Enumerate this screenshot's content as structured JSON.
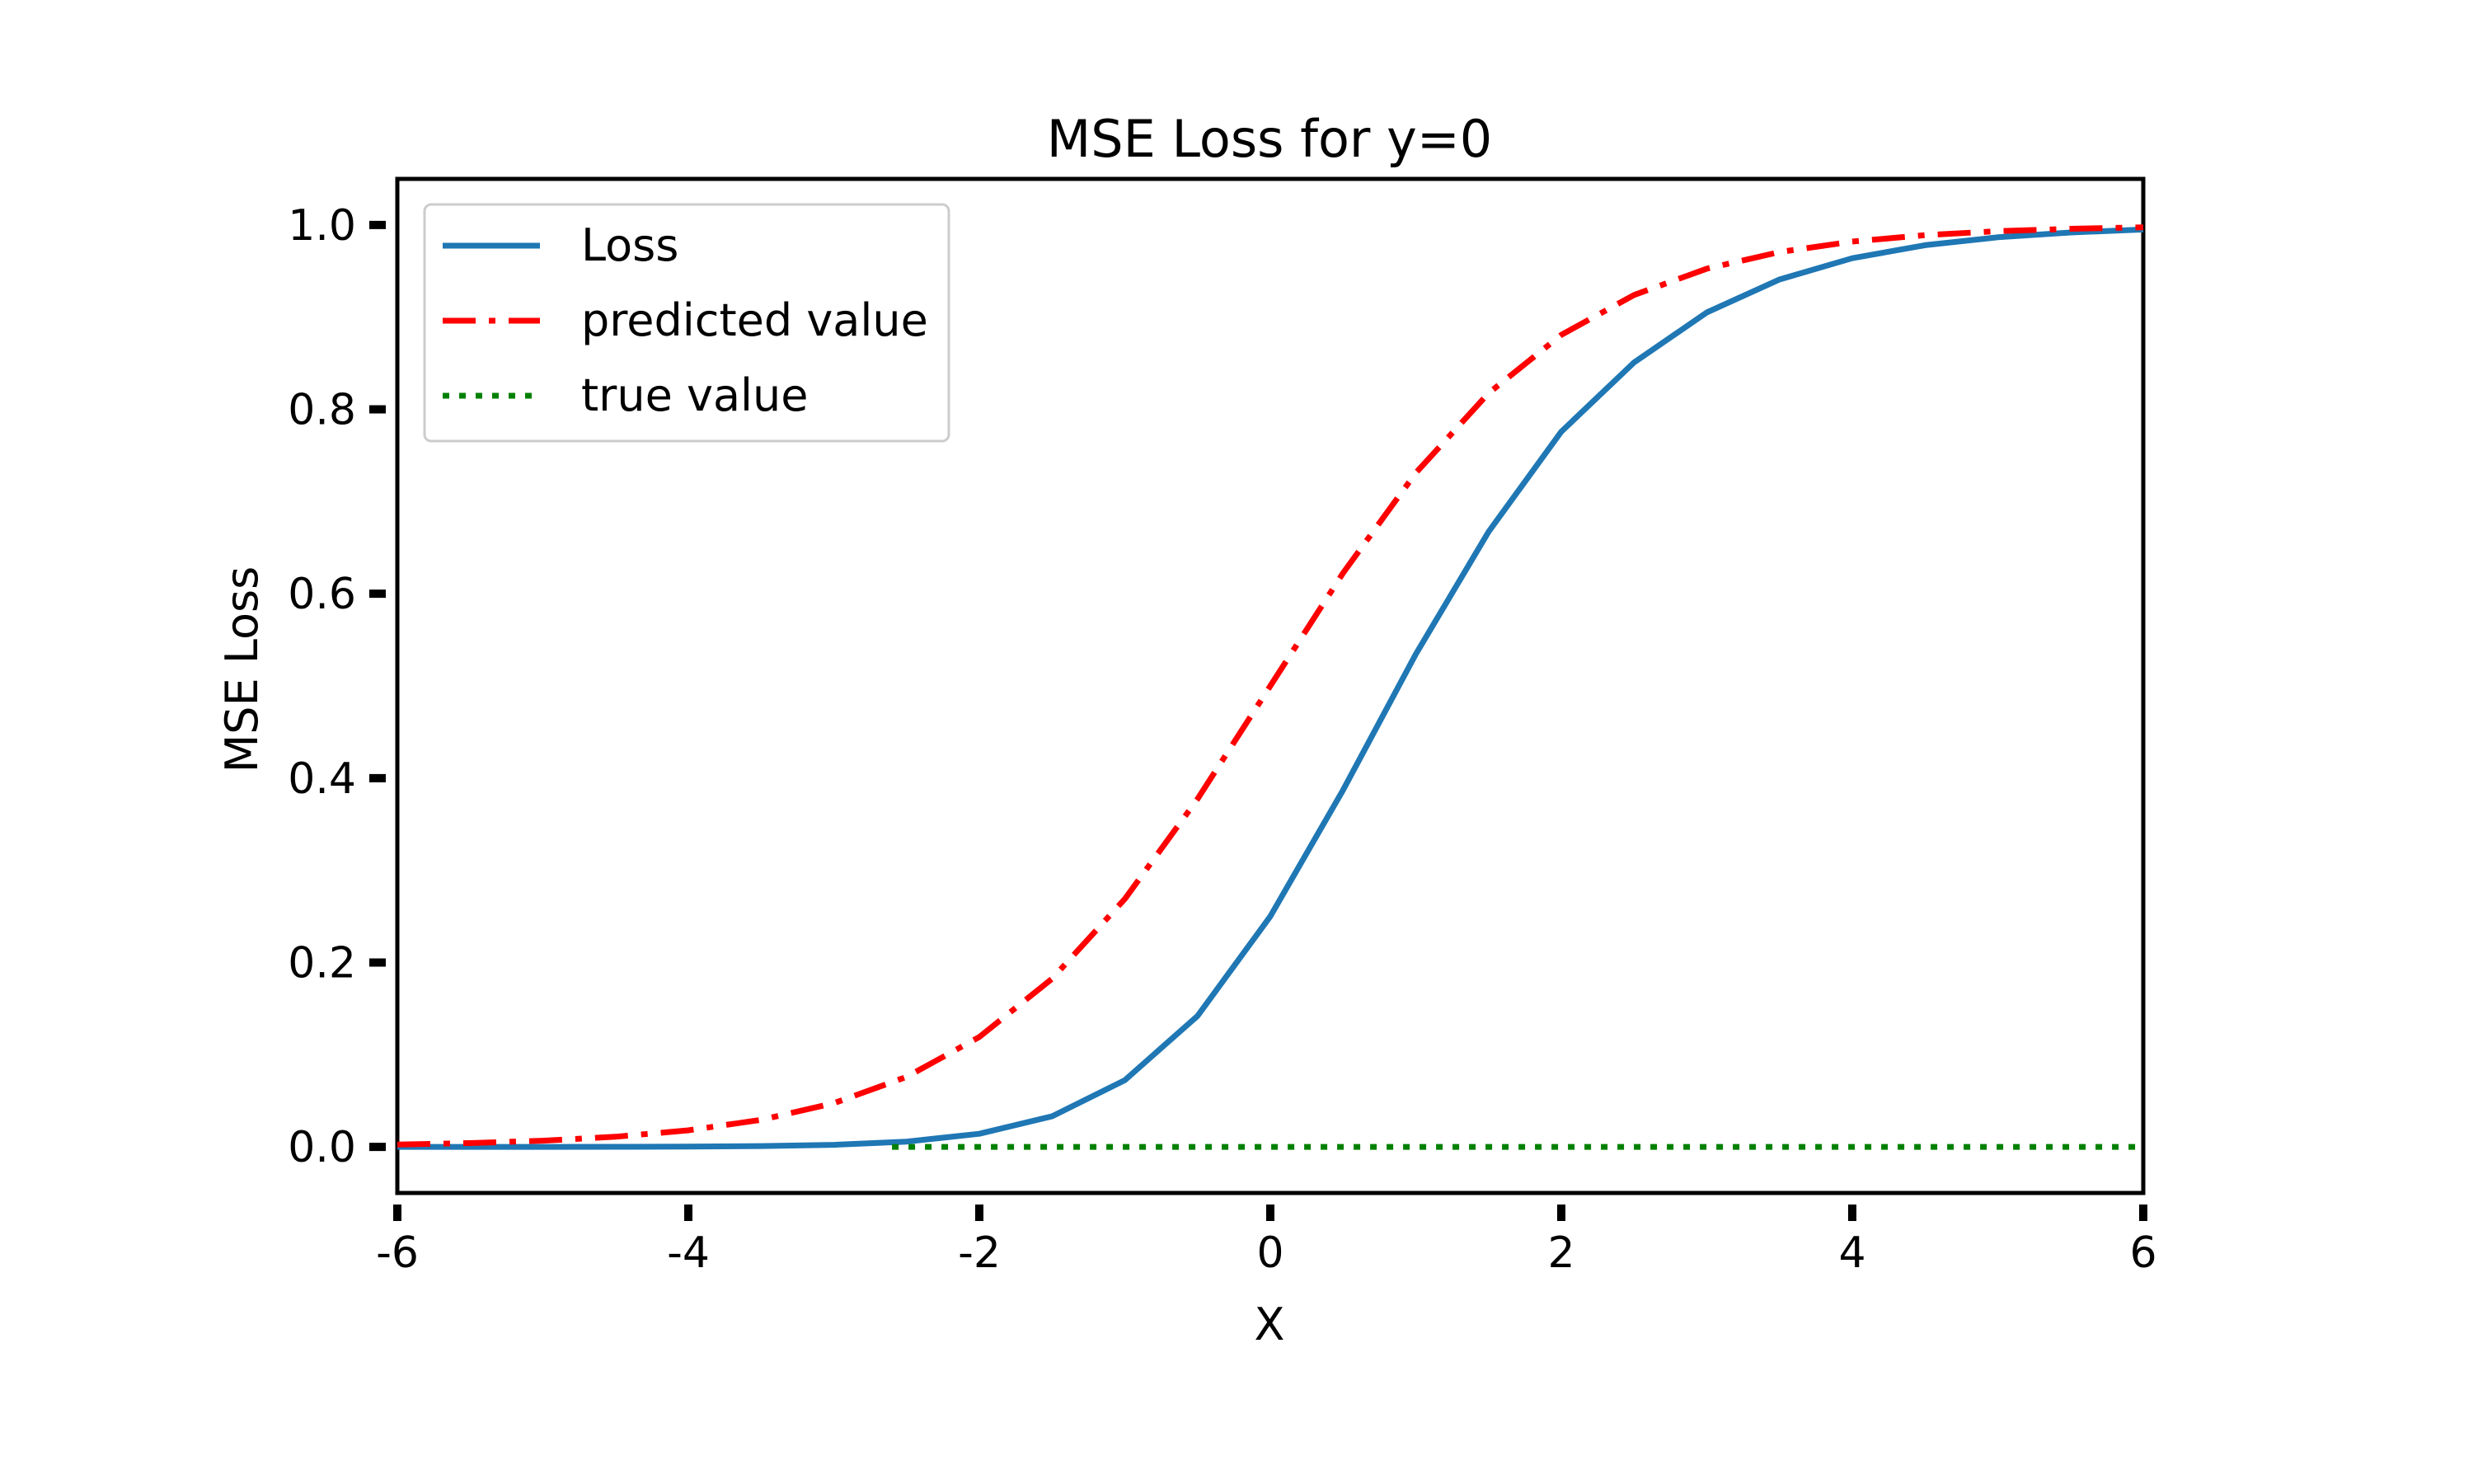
{
  "chart_data": {
    "type": "line",
    "title": "MSE Loss for y=0",
    "xlabel": "X",
    "ylabel": "MSE Loss",
    "xlim": [
      -6,
      6
    ],
    "ylim": [
      -0.05,
      1.05
    ],
    "grid": false,
    "legend_position": "top-left",
    "x_ticks": [
      {
        "value": -6,
        "label": "-6"
      },
      {
        "value": -4,
        "label": "-4"
      },
      {
        "value": -2,
        "label": "-2"
      },
      {
        "value": 0,
        "label": "0"
      },
      {
        "value": 2,
        "label": "2"
      },
      {
        "value": 4,
        "label": "4"
      },
      {
        "value": 6,
        "label": "6"
      }
    ],
    "y_ticks": [
      {
        "value": 0.0,
        "label": "0.0"
      },
      {
        "value": 0.2,
        "label": "0.2"
      },
      {
        "value": 0.4,
        "label": "0.4"
      },
      {
        "value": 0.6,
        "label": "0.6"
      },
      {
        "value": 0.8,
        "label": "0.8"
      },
      {
        "value": 1.0,
        "label": "1.0"
      }
    ],
    "x": [
      -6,
      -5.5,
      -5,
      -4.5,
      -4,
      -3.5,
      -3,
      -2.5,
      -2,
      -1.5,
      -1,
      -0.5,
      0,
      0.5,
      1,
      1.5,
      2,
      2.5,
      3,
      3.5,
      4,
      4.5,
      5,
      5.5,
      6
    ],
    "series": [
      {
        "name": "Loss",
        "color": "#1f77b4",
        "style": "solid",
        "values": [
          0.0,
          0.0,
          0.0,
          0.0001,
          0.0003,
          0.0009,
          0.0022,
          0.0057,
          0.0142,
          0.0332,
          0.0723,
          0.1421,
          0.25,
          0.3871,
          0.5344,
          0.6672,
          0.7758,
          0.8509,
          0.9051,
          0.9409,
          0.964,
          0.9781,
          0.9867,
          0.9919,
          0.9951
        ]
      },
      {
        "name": "predicted value",
        "color": "#ff0000",
        "style": "dashdot",
        "values": [
          0.0025,
          0.0041,
          0.0067,
          0.011,
          0.018,
          0.0293,
          0.0474,
          0.0759,
          0.1192,
          0.1824,
          0.2689,
          0.3775,
          0.5,
          0.6225,
          0.7311,
          0.8176,
          0.8808,
          0.9241,
          0.9526,
          0.9707,
          0.982,
          0.989,
          0.9933,
          0.9959,
          0.9975
        ]
      },
      {
        "name": "true value",
        "color": "#008000",
        "style": "dotted",
        "values": [
          0,
          0,
          0,
          0,
          0,
          0,
          0,
          0,
          0,
          0,
          0,
          0,
          0,
          0,
          0,
          0,
          0,
          0,
          0,
          0,
          0,
          0,
          0,
          0,
          0
        ],
        "x_start": -2.6
      }
    ]
  }
}
